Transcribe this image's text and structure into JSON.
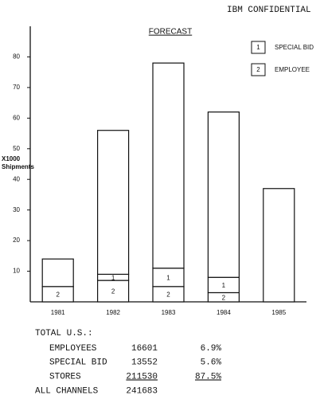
{
  "header": "IBM CONFIDENTIAL",
  "chart_data": {
    "type": "bar",
    "stacked": true,
    "title": "FORECAST",
    "y_label": "X1000 Shipments",
    "categories": [
      "1981",
      "1982",
      "1983",
      "1984",
      "1985"
    ],
    "series": [
      {
        "name": "EMPLOYEE",
        "key": "2",
        "color": "#ffffff",
        "values": [
          5,
          7,
          5,
          3,
          null
        ]
      },
      {
        "name": "SPECIAL BID",
        "key": "1",
        "color": "#ffffff",
        "values": [
          null,
          2,
          6,
          5,
          null
        ]
      },
      {
        "color": "#ffffff",
        "values": [
          9,
          47,
          67,
          54,
          37
        ]
      }
    ],
    "ylim": [
      0,
      90
    ],
    "yticks": [
      10,
      20,
      30,
      40,
      50,
      60,
      70,
      80
    ],
    "grid": false,
    "legend": "top-right"
  },
  "table": {
    "title": "TOTAL U.S.:",
    "rows": [
      [
        "EMPLOYEES",
        "16601",
        "6.9%"
      ],
      [
        "SPECIAL BID",
        "13552",
        "5.6%"
      ],
      [
        "STORES",
        "211530",
        "87.5%"
      ],
      [
        "ALL CHANNELS",
        "241683"
      ]
    ]
  }
}
